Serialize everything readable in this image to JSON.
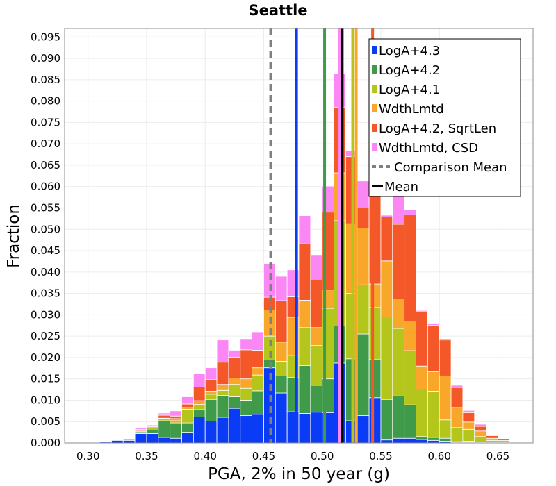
{
  "chart_data": {
    "type": "bar",
    "stacked": true,
    "title": "Seattle",
    "xlabel": "PGA, 2% in 50 year (g)",
    "ylabel": "Fraction",
    "xlim": [
      0.28,
      0.68
    ],
    "ylim": [
      0,
      0.097
    ],
    "bin_width": 0.01,
    "grid": true,
    "legend_position": "top-right",
    "x_ticks": [
      "0.30",
      "0.35",
      "0.40",
      "0.45",
      "0.50",
      "0.55",
      "0.60",
      "0.65"
    ],
    "y_ticks": [
      "0.000",
      "0.005",
      "0.010",
      "0.015",
      "0.020",
      "0.025",
      "0.030",
      "0.035",
      "0.040",
      "0.045",
      "0.050",
      "0.055",
      "0.060",
      "0.065",
      "0.070",
      "0.075",
      "0.080",
      "0.085",
      "0.090",
      "0.095"
    ],
    "x": [
      0.295,
      0.305,
      0.315,
      0.325,
      0.335,
      0.345,
      0.355,
      0.365,
      0.375,
      0.385,
      0.395,
      0.405,
      0.415,
      0.425,
      0.435,
      0.445,
      0.455,
      0.465,
      0.475,
      0.485,
      0.495,
      0.505,
      0.515,
      0.525,
      0.535,
      0.545,
      0.555,
      0.565,
      0.575,
      0.585,
      0.595,
      0.605,
      0.615,
      0.625,
      0.635,
      0.645,
      0.655,
      0.665,
      0.675
    ],
    "series": [
      {
        "name": "LogA+4.3",
        "color": "#0b3cf5",
        "values": [
          0.0,
          0.0,
          0.0002,
          0.0006,
          0.0006,
          0.0022,
          0.0022,
          0.0013,
          0.0011,
          0.0025,
          0.0061,
          0.0051,
          0.006,
          0.0081,
          0.0064,
          0.0067,
          0.0176,
          0.0117,
          0.0073,
          0.0069,
          0.0072,
          0.0071,
          0.0187,
          0.0052,
          0.0064,
          0.0106,
          0.0007,
          0.0011,
          0.0011,
          0.0008,
          0.0006,
          0.0004,
          0.0001,
          0.0001,
          0.0,
          0.0,
          0.0,
          0.0,
          0.0
        ]
      },
      {
        "name": "LogA+4.2",
        "color": "#3f9a4a",
        "values": [
          0.0,
          0.0,
          0.0,
          0.0001,
          0.0002,
          0.0004,
          0.0008,
          0.0039,
          0.0036,
          0.0022,
          0.0017,
          0.0051,
          0.0051,
          0.0027,
          0.0036,
          0.0055,
          0.0018,
          0.004,
          0.008,
          0.0112,
          0.0063,
          0.0079,
          0.0087,
          0.0145,
          0.0191,
          0.0089,
          0.0095,
          0.0099,
          0.0078,
          0.0007,
          0.0007,
          0.0007,
          0.0002,
          0.0003,
          0.0001,
          0.0001,
          0.0001,
          0.0,
          0.0
        ]
      },
      {
        "name": "LogA+4.1",
        "color": "#b4c51c",
        "values": [
          0.0,
          0.0,
          0.0,
          0.0,
          0.0,
          0.0002,
          0.0005,
          0.0005,
          0.0005,
          0.0032,
          0.0012,
          0.0012,
          0.0012,
          0.0029,
          0.0028,
          0.0037,
          0.0056,
          0.0034,
          0.0052,
          0.0089,
          0.0093,
          0.0165,
          0.0246,
          0.0153,
          0.0115,
          0.0122,
          0.0193,
          0.0158,
          0.0127,
          0.0111,
          0.0108,
          0.0043,
          0.0033,
          0.0028,
          0.0014,
          0.0005,
          0.0001,
          0.0,
          0.0
        ]
      },
      {
        "name": "WdthLmtd",
        "color": "#f9a72b",
        "values": [
          0.0,
          0.0,
          0.0,
          0.0,
          0.0,
          0.0,
          0.0001,
          0.0001,
          0.0005,
          0.0004,
          0.0009,
          0.0007,
          0.0014,
          0.0015,
          0.0022,
          0.0017,
          0.0061,
          0.0045,
          0.0089,
          0.0064,
          0.0042,
          0.0043,
          0.0112,
          0.0163,
          0.0133,
          0.0055,
          0.0131,
          0.0069,
          0.0069,
          0.0054,
          0.0046,
          0.0103,
          0.0047,
          0.0017,
          0.0013,
          0.0005,
          0.0004,
          0.0001,
          0.0
        ]
      },
      {
        "name": "LogA+4.2, SqrtLen",
        "color": "#f45728",
        "values": [
          0.0,
          0.0,
          0.0,
          0.0,
          0.0,
          0.0004,
          0.0002,
          0.0007,
          0.0006,
          0.0008,
          0.0032,
          0.0027,
          0.0052,
          0.0049,
          0.0068,
          0.0041,
          0.003,
          0.0097,
          0.0048,
          0.0132,
          0.0111,
          0.0182,
          0.0154,
          0.0157,
          0.0047,
          0.0218,
          0.0103,
          0.0175,
          0.0249,
          0.0127,
          0.0108,
          0.0084,
          0.0047,
          0.0022,
          0.0011,
          0.0006,
          0.0003,
          0.0001,
          0.0
        ]
      },
      {
        "name": "WdthLmtd, CSD",
        "color": "#fb87f5",
        "values": [
          0.0,
          0.0,
          0.0,
          0.0,
          0.0,
          0.0004,
          0.0004,
          0.0005,
          0.0012,
          0.0017,
          0.0032,
          0.0028,
          0.0052,
          0.0016,
          0.0026,
          0.0043,
          0.0079,
          0.0057,
          0.0063,
          0.0066,
          0.0058,
          0.0061,
          0.0078,
          0.0014,
          0.0063,
          0.0022,
          0.0004,
          0.0066,
          0.0011,
          0.0003,
          0.0004,
          0.0003,
          0.0005,
          0.0005,
          0.0005,
          0.0003,
          0.0001,
          0.0,
          0.0
        ]
      }
    ],
    "lines": [
      {
        "name": "LogA+4.3",
        "x": 0.478,
        "color": "#0b3cf5",
        "style": "solid"
      },
      {
        "name": "LogA+4.2",
        "x": 0.502,
        "color": "#3f9a4a",
        "style": "solid"
      },
      {
        "name": "LogA+4.1",
        "x": 0.526,
        "color": "#b4c51c",
        "style": "solid"
      },
      {
        "name": "WdthLmtd",
        "x": 0.529,
        "color": "#f9a72b",
        "style": "solid"
      },
      {
        "name": "LogA+4.2, SqrtLen",
        "x": 0.543,
        "color": "#f45728",
        "style": "solid"
      },
      {
        "name": "WdthLmtd, CSD",
        "x": 0.515,
        "color": "#fb87f5",
        "style": "solid"
      },
      {
        "name": "Comparison Mean",
        "x": 0.456,
        "color": "#808080",
        "style": "dashed"
      },
      {
        "name": "Mean",
        "x": 0.517,
        "color": "#000000",
        "style": "solid"
      }
    ],
    "legend": [
      {
        "label": "LogA+4.3",
        "color": "#0b3cf5",
        "kind": "box"
      },
      {
        "label": "LogA+4.2",
        "color": "#3f9a4a",
        "kind": "box"
      },
      {
        "label": "LogA+4.1",
        "color": "#b4c51c",
        "kind": "box"
      },
      {
        "label": "WdthLmtd",
        "color": "#f9a72b",
        "kind": "box"
      },
      {
        "label": "LogA+4.2, SqrtLen",
        "color": "#f45728",
        "kind": "box"
      },
      {
        "label": "WdthLmtd, CSD",
        "color": "#fb87f5",
        "kind": "box"
      },
      {
        "label": "Comparison Mean",
        "color": "#808080",
        "kind": "dashed-line"
      },
      {
        "label": "Mean",
        "color": "#000000",
        "kind": "line"
      }
    ]
  }
}
